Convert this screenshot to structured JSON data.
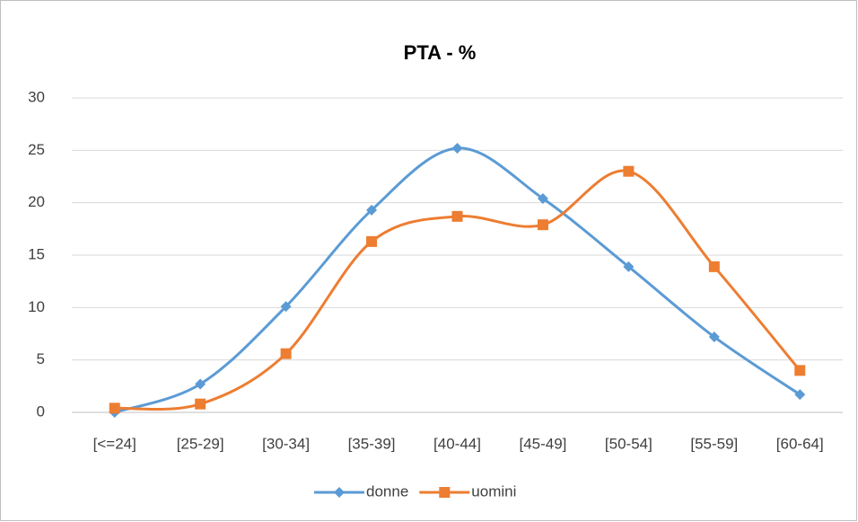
{
  "chart_data": {
    "type": "line",
    "title": "PTA  - %",
    "categories": [
      "[<=24]",
      "[25-29]",
      "[30-34]",
      "[35-39]",
      "[40-44]",
      "[45-49]",
      "[50-54]",
      "[55-59]",
      "[60-64]"
    ],
    "series": [
      {
        "name": "donne",
        "color": "#5b9bd5",
        "marker": "diamond",
        "values": [
          0,
          2.7,
          10.1,
          19.3,
          25.2,
          20.4,
          13.9,
          7.2,
          1.7
        ]
      },
      {
        "name": "uomini",
        "color": "#ed7d31",
        "marker": "square",
        "values": [
          0.4,
          0.8,
          5.6,
          16.3,
          18.7,
          17.9,
          23.0,
          13.9,
          4.0
        ]
      }
    ],
    "ylim": [
      0,
      30
    ],
    "yticks": [
      0,
      5,
      10,
      15,
      20,
      25,
      30
    ],
    "grid": true,
    "smooth": true,
    "legend": "bottom"
  }
}
